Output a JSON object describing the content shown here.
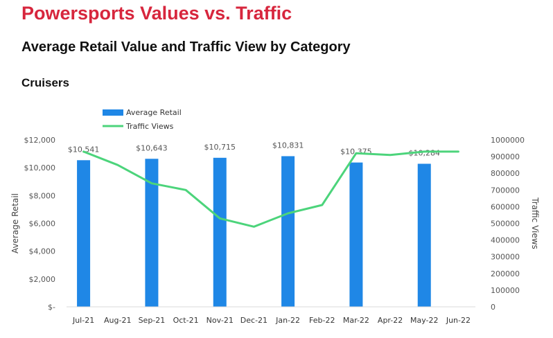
{
  "header": {
    "title": "Powersports Values vs. Traffic",
    "subtitle": "Average Retail Value and Traffic View by Category",
    "section": "Cruisers"
  },
  "colors": {
    "title": "#d7263d",
    "bar": "#1f87e6",
    "line": "#4cd47b",
    "axis_text": "#555555"
  },
  "chart_data": {
    "type": "bar",
    "categories": [
      "Jul-21",
      "Aug-21",
      "Sep-21",
      "Oct-21",
      "Nov-21",
      "Dec-21",
      "Jan-22",
      "Feb-22",
      "Mar-22",
      "Apr-22",
      "May-22",
      "Jun-22"
    ],
    "series": [
      {
        "name": "Average Retail",
        "type": "bar",
        "axis": "left",
        "values": [
          10541,
          null,
          10643,
          null,
          10715,
          null,
          10831,
          null,
          10375,
          null,
          10284,
          null
        ],
        "labels": [
          "$10,541",
          "",
          "$10,643",
          "",
          "$10,715",
          "",
          "$10,831",
          "",
          "$10,375",
          "",
          "$10,284",
          ""
        ]
      },
      {
        "name": "Traffic Views",
        "type": "line",
        "axis": "right",
        "values": [
          930000,
          850000,
          740000,
          700000,
          530000,
          480000,
          560000,
          610000,
          920000,
          910000,
          930000,
          930000
        ]
      }
    ],
    "ylabel": "Average Retail",
    "y2label": "Traffic Views",
    "ylim": [
      0,
      12000
    ],
    "y2lim": [
      0,
      1000000
    ],
    "yticks": [
      0,
      2000,
      4000,
      6000,
      8000,
      10000,
      12000
    ],
    "ytick_labels": [
      "$-",
      "$2,000",
      "$4,000",
      "$6,000",
      "$8,000",
      "$10,000",
      "$12,000"
    ],
    "y2ticks": [
      0,
      100000,
      200000,
      300000,
      400000,
      500000,
      600000,
      700000,
      800000,
      900000,
      1000000
    ],
    "y2tick_labels": [
      "0",
      "100000",
      "200000",
      "300000",
      "400000",
      "500000",
      "600000",
      "700000",
      "800000",
      "900000",
      "1000000"
    ],
    "legend": [
      "Average Retail",
      "Traffic Views"
    ],
    "legend_position": "top-left",
    "grid": false
  }
}
